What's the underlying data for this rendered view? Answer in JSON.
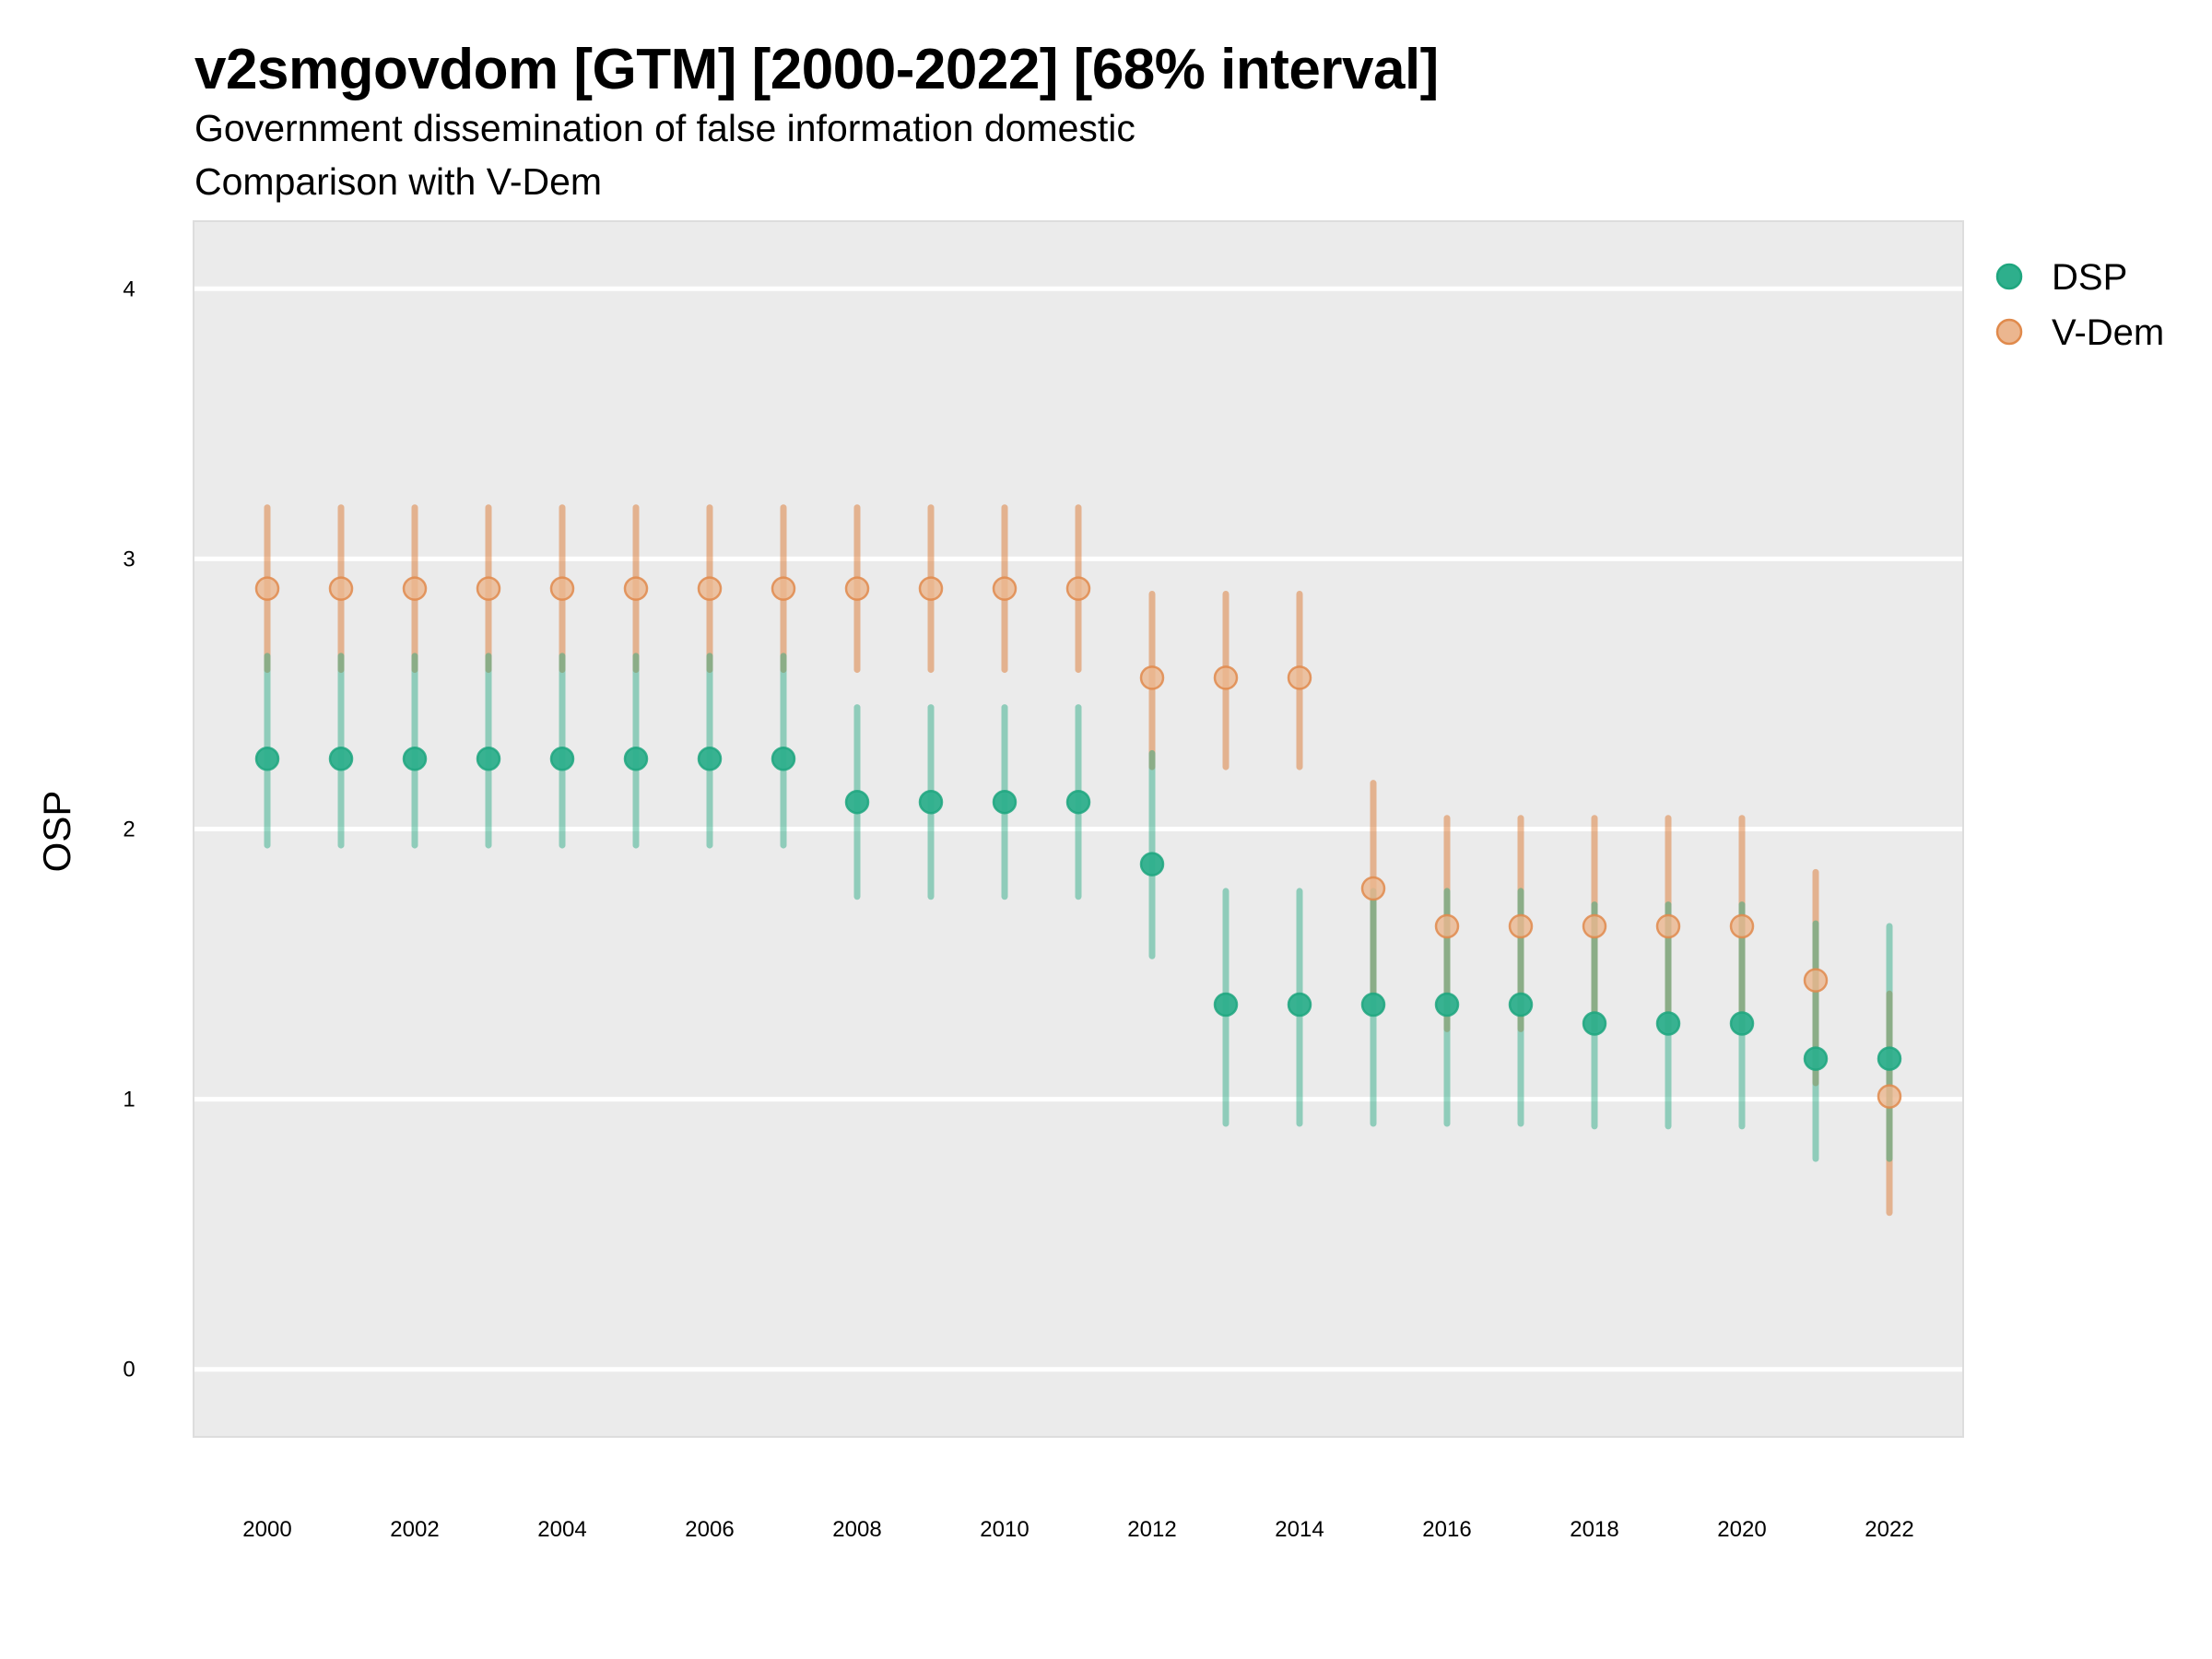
{
  "title": "v2smgovdom [GTM] [2000-2022] [68% interval]",
  "subtitle_lines": [
    "Government dissemination of false information domestic",
    "Comparison with V-Dem"
  ],
  "chart_data": {
    "type": "scatter",
    "subtype": "point-range",
    "title": "v2smgovdom [GTM] [2000-2022] [68% interval]",
    "subtitle": "Government dissemination of false information domestic / Comparison with V-Dem",
    "xlabel": "",
    "ylabel": "OSP",
    "xlim": [
      1999,
      2023
    ],
    "ylim": [
      -0.25,
      4.25
    ],
    "x_ticks": [
      2000,
      2002,
      2004,
      2006,
      2008,
      2010,
      2012,
      2014,
      2016,
      2018,
      2020,
      2022
    ],
    "x_tick_labels": [
      "2000",
      "2002",
      "2004",
      "2006",
      "2008",
      "2010",
      "2012",
      "2014",
      "2016",
      "2018",
      "2020",
      "2022"
    ],
    "y_ticks": [
      0,
      1,
      2,
      3,
      4
    ],
    "y_tick_labels": [
      "0",
      "1",
      "2",
      "3",
      "4"
    ],
    "grid": true,
    "legend_position": "right",
    "x": [
      2000,
      2001,
      2002,
      2003,
      2004,
      2005,
      2006,
      2007,
      2008,
      2009,
      2010,
      2011,
      2012,
      2013,
      2014,
      2015,
      2016,
      2017,
      2018,
      2019,
      2020,
      2021,
      2022
    ],
    "series": [
      {
        "name": "DSP",
        "color": "#1FA67F",
        "fill": "#2EAF8C",
        "interval_color": "#8FD0BD",
        "values": [
          2.26,
          2.26,
          2.26,
          2.26,
          2.26,
          2.26,
          2.26,
          2.26,
          2.1,
          2.1,
          2.1,
          2.1,
          1.87,
          1.35,
          1.35,
          1.35,
          1.35,
          1.35,
          1.28,
          1.28,
          1.28,
          1.15,
          1.15
        ],
        "lower": [
          1.94,
          1.94,
          1.94,
          1.94,
          1.94,
          1.94,
          1.94,
          1.94,
          1.75,
          1.75,
          1.75,
          1.75,
          1.53,
          0.91,
          0.91,
          0.91,
          0.91,
          0.91,
          0.9,
          0.9,
          0.9,
          0.78,
          0.78
        ],
        "upper": [
          2.64,
          2.64,
          2.64,
          2.64,
          2.64,
          2.64,
          2.64,
          2.64,
          2.45,
          2.45,
          2.45,
          2.45,
          2.28,
          1.77,
          1.77,
          1.77,
          1.77,
          1.77,
          1.72,
          1.72,
          1.72,
          1.65,
          1.64
        ]
      },
      {
        "name": "V-Dem",
        "color": "#E08A4C",
        "fill": "#EBB68F",
        "interval_color": "#E6B28C",
        "values": [
          2.89,
          2.89,
          2.89,
          2.89,
          2.89,
          2.89,
          2.89,
          2.89,
          2.89,
          2.89,
          2.89,
          2.89,
          2.56,
          2.56,
          2.56,
          1.78,
          1.64,
          1.64,
          1.64,
          1.64,
          1.64,
          1.44,
          1.01
        ],
        "lower": [
          2.59,
          2.59,
          2.59,
          2.59,
          2.59,
          2.59,
          2.59,
          2.59,
          2.59,
          2.59,
          2.59,
          2.59,
          2.23,
          2.23,
          2.23,
          1.39,
          1.26,
          1.26,
          1.26,
          1.26,
          1.26,
          1.06,
          0.58
        ],
        "upper": [
          3.19,
          3.19,
          3.19,
          3.19,
          3.19,
          3.19,
          3.19,
          3.19,
          3.19,
          3.19,
          3.19,
          3.19,
          2.87,
          2.87,
          2.87,
          2.17,
          2.04,
          2.04,
          2.04,
          2.04,
          2.04,
          1.84,
          1.39
        ]
      }
    ],
    "legend": [
      {
        "label": "DSP",
        "color": "#2EAF8C"
      },
      {
        "label": "V-Dem",
        "color": "#EBB68F"
      }
    ]
  },
  "colors": {
    "panel_background": "#EBEBEB",
    "panel_border": "#DDDDDD",
    "gridline": "#FFFFFF"
  }
}
